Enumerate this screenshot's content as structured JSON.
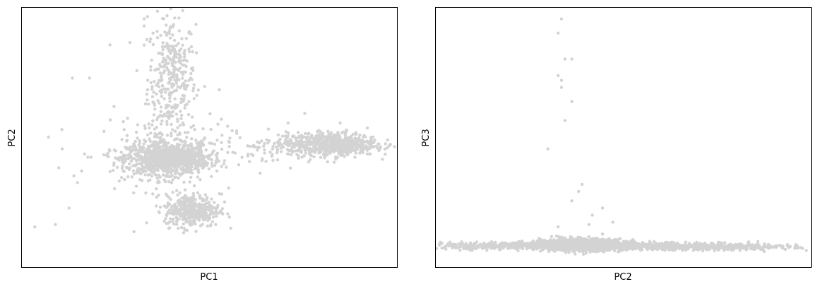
{
  "chart_data": [
    {
      "type": "scatter",
      "title": "",
      "xlabel": "PC1",
      "ylabel": "PC2",
      "ticks": "none",
      "grid": false,
      "legend": "none",
      "point_color": "#d3d3d3",
      "xlim": [
        -10,
        100
      ],
      "ylim": [
        -10,
        100
      ],
      "clusters": [
        {
          "name": "vertical-band",
          "cx": 34,
          "cy": 70,
          "sx": 3.5,
          "sy": 13,
          "n": 340
        },
        {
          "name": "main-cluster",
          "cx": 33,
          "cy": 36,
          "sx": 6,
          "sy": 3.2,
          "n": 950
        },
        {
          "name": "main-halo",
          "cx": 32,
          "cy": 38,
          "sx": 10,
          "sy": 8,
          "n": 240
        },
        {
          "name": "lower-cluster",
          "cx": 40,
          "cy": 14,
          "sx": 4,
          "sy": 3.5,
          "n": 380
        },
        {
          "name": "right-cluster",
          "cx": 81,
          "cy": 42,
          "sx": 6.5,
          "sy": 2.5,
          "n": 620
        },
        {
          "name": "right-arm",
          "cx": 65,
          "cy": 41,
          "sx": 6,
          "sy": 3,
          "n": 90
        }
      ],
      "outliers": [
        {
          "x": 26,
          "y": 95
        },
        {
          "x": 27,
          "y": 96
        },
        {
          "x": 26,
          "y": 92
        },
        {
          "x": 16,
          "y": 84
        },
        {
          "x": 10,
          "y": 70
        },
        {
          "x": 5,
          "y": 70
        },
        {
          "x": 73,
          "y": 55
        },
        {
          "x": 93,
          "y": 45
        },
        {
          "x": 95,
          "y": 40
        },
        {
          "x": -6,
          "y": 7
        },
        {
          "x": 0,
          "y": 8
        },
        {
          "x": 4,
          "y": 15
        },
        {
          "x": 2,
          "y": 40
        },
        {
          "x": 1,
          "y": 32
        },
        {
          "x": 23,
          "y": 5
        },
        {
          "x": -2,
          "y": 45
        },
        {
          "x": 48,
          "y": 65
        }
      ]
    },
    {
      "type": "scatter",
      "title": "",
      "xlabel": "PC2",
      "ylabel": "PC3",
      "ticks": "none",
      "grid": false,
      "legend": "none",
      "point_color": "#d3d3d3",
      "xlim": [
        -10,
        100
      ],
      "ylim": [
        -10,
        100
      ],
      "clusters": [
        {
          "name": "flat-band",
          "cx": 30,
          "cy": -1,
          "sx": 22,
          "sy": 0.8,
          "n": 900
        },
        {
          "name": "center-dense",
          "cx": 33,
          "cy": -0.5,
          "sx": 6,
          "sy": 1.2,
          "n": 1200
        },
        {
          "name": "right-band",
          "cx": 70,
          "cy": -1.5,
          "sx": 12,
          "sy": 0.7,
          "n": 400
        }
      ],
      "outliers": [
        {
          "x": 27,
          "y": 95
        },
        {
          "x": 26,
          "y": 89
        },
        {
          "x": 28,
          "y": 78
        },
        {
          "x": 26,
          "y": 71
        },
        {
          "x": 27,
          "y": 69
        },
        {
          "x": 27,
          "y": 66
        },
        {
          "x": 30,
          "y": 78
        },
        {
          "x": 30,
          "y": 60
        },
        {
          "x": 28,
          "y": 52
        },
        {
          "x": 23,
          "y": 40
        },
        {
          "x": 33,
          "y": 25
        },
        {
          "x": 32,
          "y": 22
        },
        {
          "x": 30,
          "y": 18
        },
        {
          "x": 36,
          "y": 12
        },
        {
          "x": 39,
          "y": 15
        },
        {
          "x": 42,
          "y": 9
        },
        {
          "x": 35,
          "y": 8
        },
        {
          "x": 26,
          "y": 7
        },
        {
          "x": 39,
          "y": 4
        },
        {
          "x": 96,
          "y": -1
        },
        {
          "x": 100,
          "y": -1
        },
        {
          "x": -8,
          "y": -2
        },
        {
          "x": -5,
          "y": -1
        }
      ]
    }
  ]
}
